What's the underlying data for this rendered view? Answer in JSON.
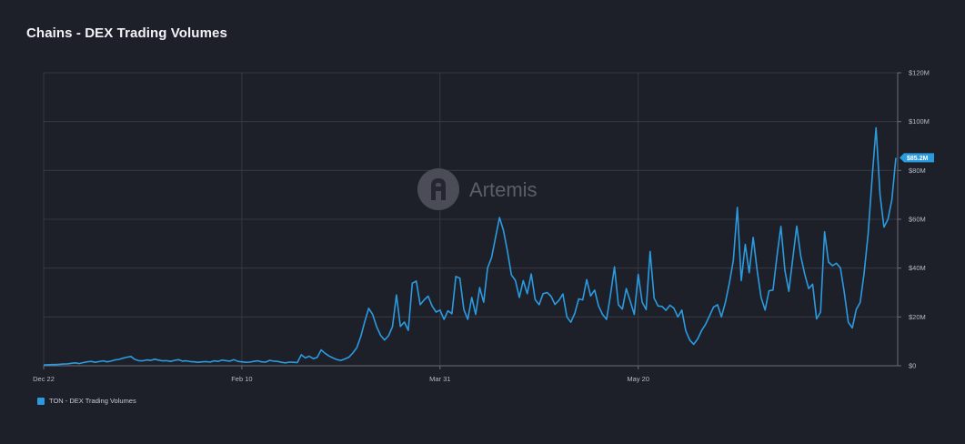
{
  "title": "Chains - DEX Trading Volumes",
  "watermark": {
    "text": "Artemis",
    "icon": "artemis-logo-icon"
  },
  "colors": {
    "background": "#1e2029",
    "grid": "#3a3d49",
    "line": "#2b9be0",
    "axis_text": "#b8bac3",
    "badge": "#2b9be0"
  },
  "last_value_label": "$85.2M",
  "legend": [
    {
      "label": "TON - DEX Trading Volumes",
      "color": "#2b9be0"
    }
  ],
  "chart_data": {
    "type": "line",
    "title": "Chains - DEX Trading Volumes",
    "xlabel": "",
    "ylabel": "",
    "x_start": "2023-12-22",
    "x_ticks": [
      {
        "label": "Dec 22",
        "date": "2023-12-22"
      },
      {
        "label": "Feb 10",
        "date": "2024-02-10"
      },
      {
        "label": "Mar 31",
        "date": "2024-03-31"
      },
      {
        "label": "May 20",
        "date": "2024-05-20"
      }
    ],
    "y_ticks": [
      "$0",
      "$20M",
      "$40M",
      "$60M",
      "$80M",
      "$100M",
      "$120M"
    ],
    "ylim": [
      0,
      120
    ],
    "y_unit": "$M",
    "grid": true,
    "legend_position": "bottom-left",
    "series": [
      {
        "name": "TON - DEX Trading Volumes",
        "color": "#2b9be0",
        "values": [
          0.3,
          0.4,
          0.5,
          0.5,
          0.6,
          0.7,
          0.8,
          1.0,
          1.2,
          0.9,
          1.3,
          1.6,
          1.8,
          1.4,
          1.7,
          2.0,
          1.6,
          1.9,
          2.4,
          2.6,
          3.1,
          3.5,
          3.8,
          2.6,
          2.1,
          2.0,
          2.4,
          2.2,
          2.7,
          2.3,
          2.0,
          2.1,
          1.8,
          2.2,
          2.5,
          1.9,
          2.0,
          1.7,
          1.6,
          1.4,
          1.6,
          1.7,
          1.5,
          2.0,
          1.8,
          2.3,
          2.1,
          1.9,
          2.5,
          1.8,
          1.6,
          1.4,
          1.5,
          1.8,
          2.0,
          1.6,
          1.5,
          2.2,
          1.9,
          1.8,
          1.4,
          1.2,
          1.5,
          1.4,
          1.3,
          4.5,
          3.2,
          3.9,
          2.9,
          3.4,
          6.5,
          5.1,
          4.0,
          3.2,
          2.5,
          2.2,
          2.8,
          3.5,
          5.2,
          7.4,
          12.0,
          18.0,
          23.5,
          21.0,
          16.0,
          12.5,
          10.5,
          12.3,
          16.0,
          29.0,
          16.1,
          17.9,
          14.5,
          33.8,
          34.7,
          25.0,
          27.0,
          28.5,
          24.5,
          22.0,
          22.8,
          19.0,
          22.5,
          21.3,
          36.6,
          35.8,
          23.0,
          19.0,
          28.0,
          21.0,
          32.0,
          26.0,
          40.1,
          44.3,
          52.5,
          60.7,
          55.5,
          47.0,
          37.2,
          35.0,
          28.0,
          34.9,
          29.5,
          37.6,
          27.1,
          25.0,
          29.5,
          30.0,
          28.5,
          25.1,
          26.8,
          29.4,
          20.0,
          17.8,
          21.5,
          27.4,
          27.0,
          35.3,
          28.6,
          31.0,
          24.5,
          21.0,
          19.0,
          29.0,
          40.5,
          25.0,
          23.2,
          31.6,
          26.4,
          21.0,
          37.4,
          26.0,
          23.0,
          46.8,
          27.7,
          24.5,
          24.3,
          22.7,
          24.8,
          23.6,
          20.0,
          22.8,
          14.3,
          10.5,
          8.8,
          11.0,
          14.5,
          17.0,
          20.5,
          24.0,
          25.0,
          20.0,
          26.0,
          34.0,
          43.2,
          64.8,
          34.9,
          49.7,
          38.1,
          52.6,
          39.0,
          28.0,
          22.8,
          30.7,
          31.0,
          45.0,
          57.1,
          39.0,
          30.5,
          44.0,
          57.2,
          45.0,
          37.5,
          31.6,
          33.4,
          19.2,
          22.0,
          54.9,
          42.5,
          41.0,
          42.0,
          40.1,
          30.0,
          17.8,
          15.5,
          23.0,
          26.0,
          38.0,
          54.0,
          77.0,
          97.5,
          70.0,
          56.8,
          60.0,
          68.0,
          85.2
        ]
      }
    ]
  }
}
